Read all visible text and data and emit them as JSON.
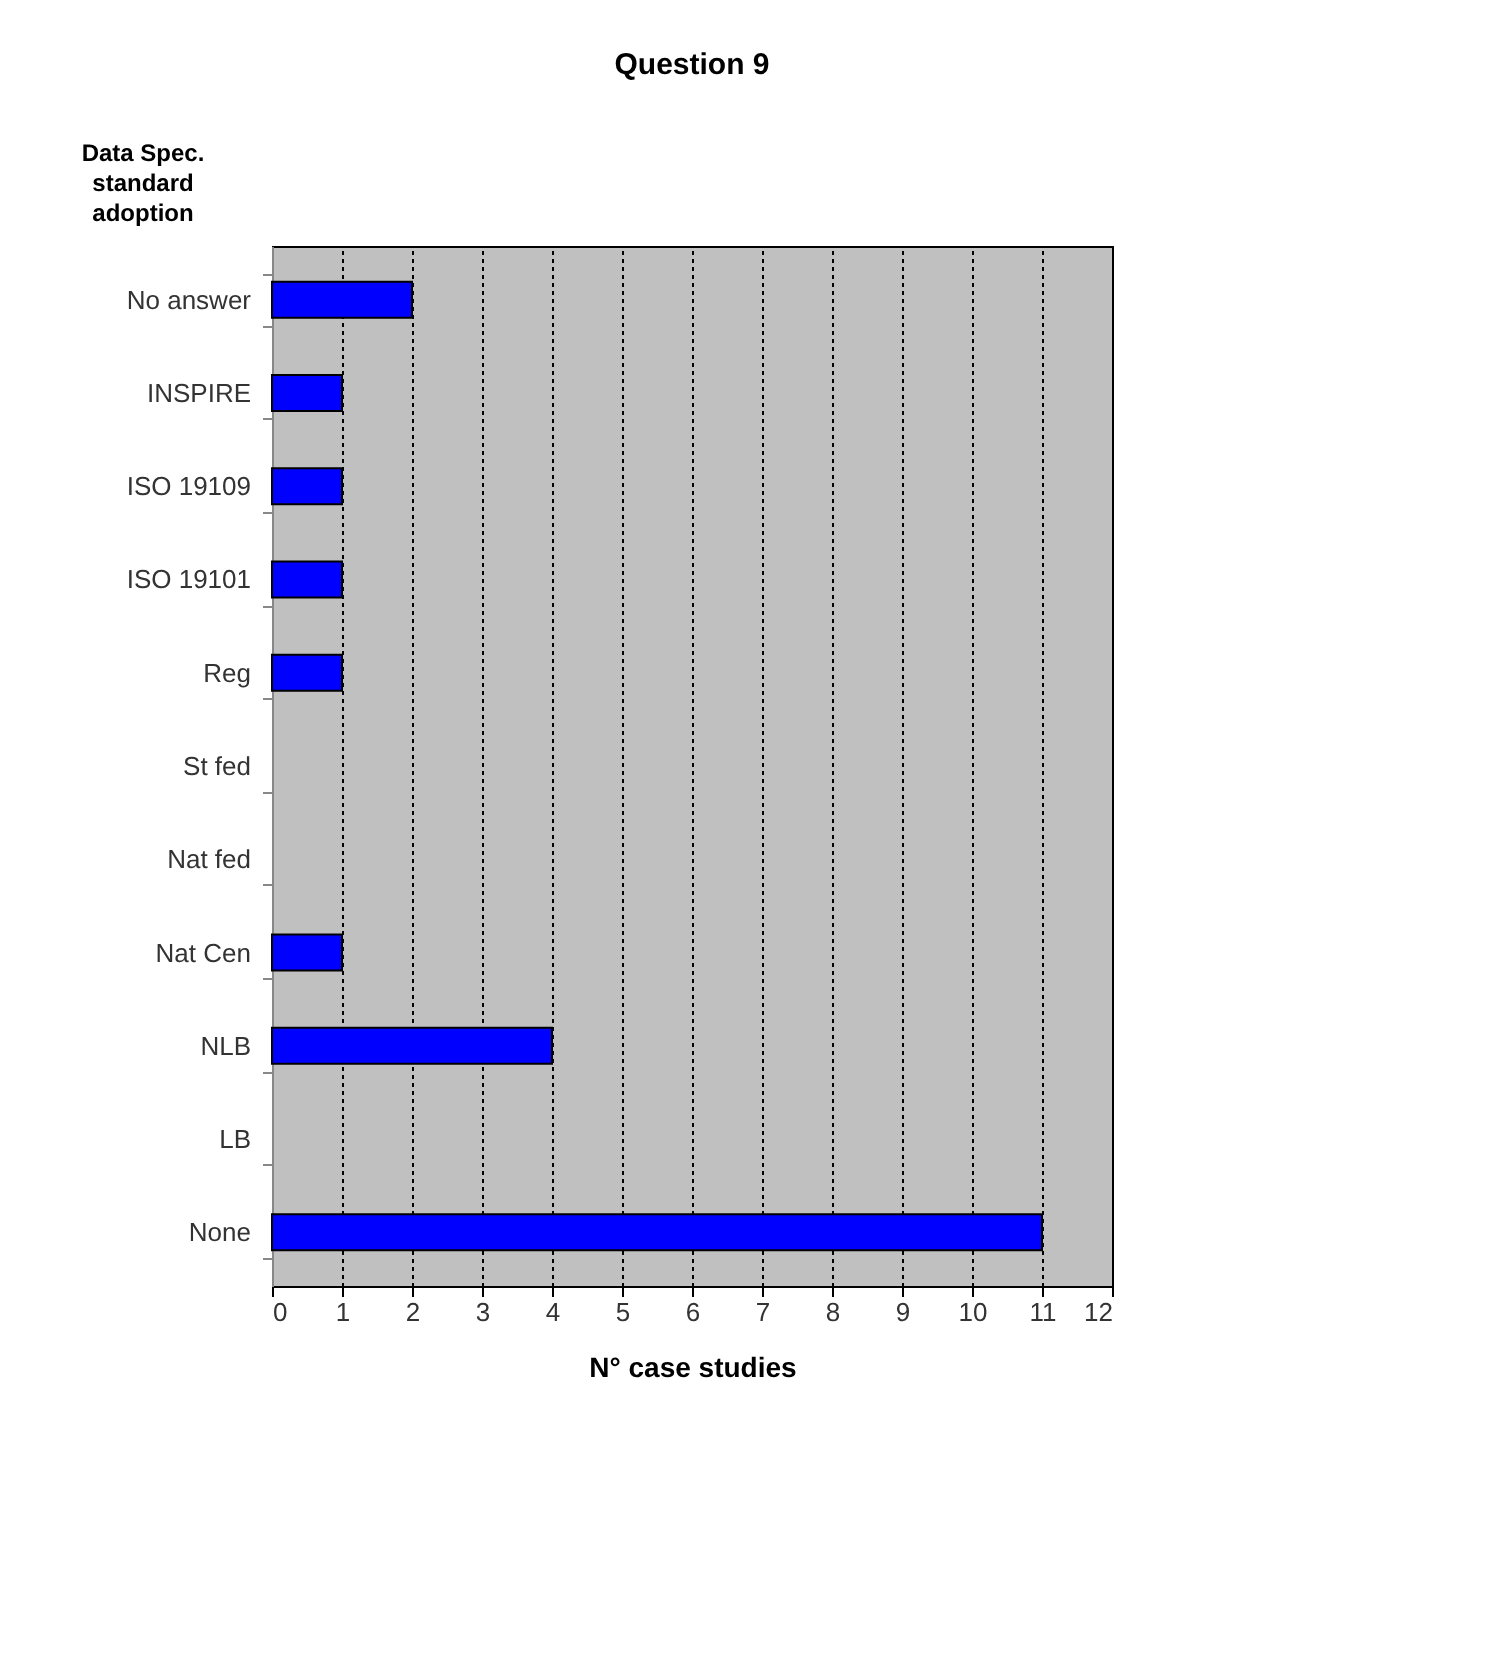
{
  "chart_data": {
    "type": "bar",
    "orientation": "horizontal",
    "title": "Question 9",
    "ylabel": "Data Spec.\nstandard\nadoption",
    "xlabel": "N° case studies",
    "categories": [
      "No answer",
      "INSPIRE",
      "ISO 19109",
      "ISO 19101",
      "Reg",
      "St fed",
      "Nat fed",
      "Nat Cen",
      "NLB",
      "LB",
      "None"
    ],
    "values": [
      2,
      1,
      1,
      1,
      1,
      0,
      0,
      1,
      4,
      0,
      11
    ],
    "color": "#0000ff",
    "xlim": [
      0,
      12
    ],
    "xticks": [
      0,
      1,
      2,
      3,
      4,
      5,
      6,
      7,
      8,
      9,
      10,
      11,
      12
    ],
    "grid": "x"
  }
}
